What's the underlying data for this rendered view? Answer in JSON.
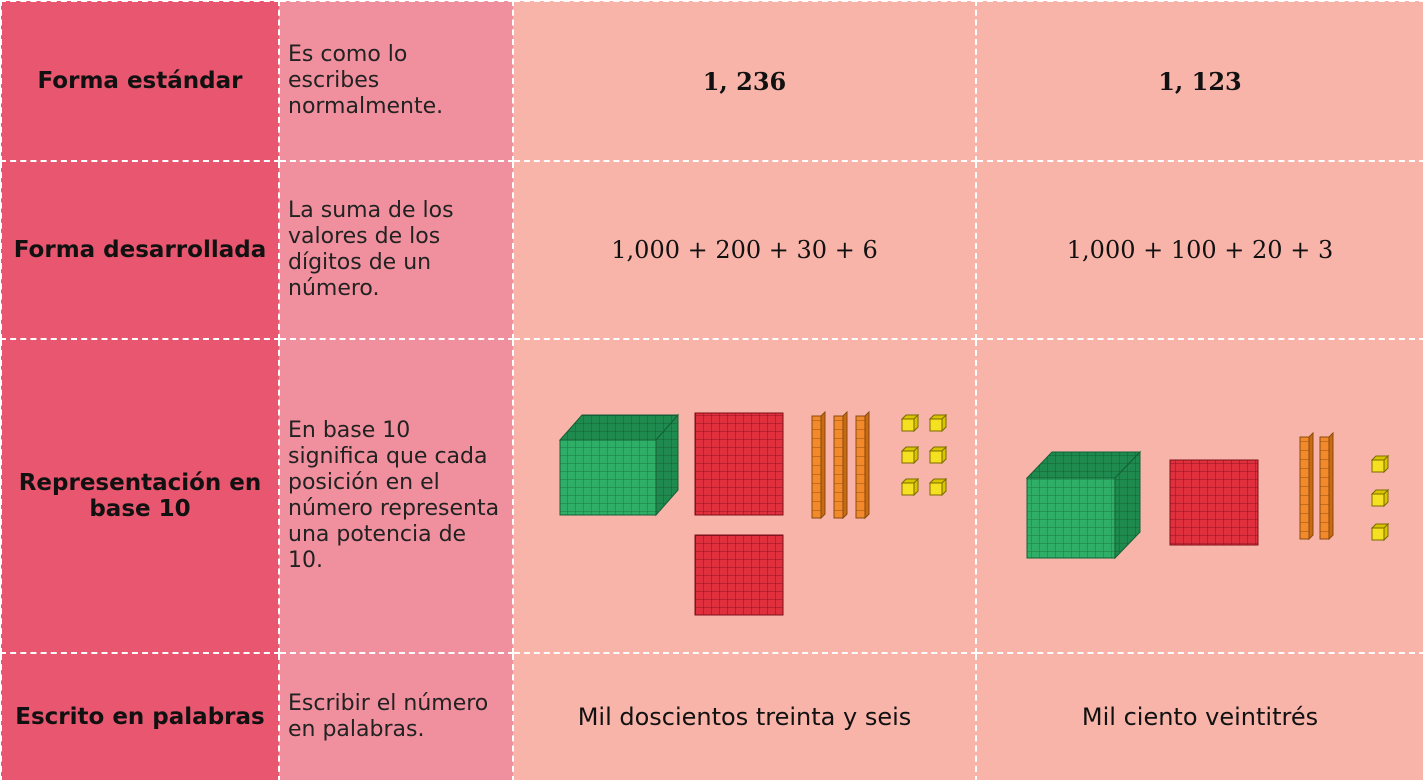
{
  "table": {
    "rows": [
      {
        "label": "Forma estándar",
        "description": "Es como lo escribes normalmente.",
        "values": [
          "1, 236",
          "1, 123"
        ]
      },
      {
        "label": "Forma desarrollada",
        "description": "La suma de los valores de los dígitos de un número.",
        "values": [
          "1,000 + 200 + 30 + 6",
          "1,000 + 100 + 20 + 3"
        ]
      },
      {
        "label": "Representación en base 10",
        "description": "En base 10 significa que cada posición en el número representa una potencia de 10."
      },
      {
        "label": "Escrito en palabras",
        "description": "Escribir el número en palabras.",
        "values": [
          "Mil doscientos treinta y seis",
          "Mil ciento veintitrés"
        ]
      }
    ]
  }
}
